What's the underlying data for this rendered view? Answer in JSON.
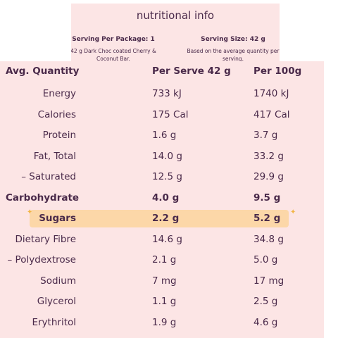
{
  "header": {
    "title": "nutritional info",
    "servings": [
      {
        "label": "Serving Per Package: 1",
        "note": "42 g Dark Choc coated Cherry & Coconut Bar."
      },
      {
        "label": "Serving Size: 42 g",
        "note": "Based on the average quantity per serving."
      }
    ]
  },
  "table": {
    "columns": [
      "Avg. Quantity",
      "Per Serve 42 g",
      "Per 100g"
    ],
    "rows": [
      [
        "Energy",
        "733 kJ",
        "1740 kJ"
      ],
      [
        "Calories",
        "175 Cal",
        "417 Cal"
      ],
      [
        "Protein",
        "1.6 g",
        "3.7 g"
      ],
      [
        "Fat, Total",
        "14.0 g",
        "33.2 g"
      ],
      [
        "– Saturated",
        "12.5 g",
        "29.9 g"
      ],
      [
        "Carbohydrate",
        "4.0 g",
        "9.5 g"
      ],
      [
        "Sugars",
        "2.2 g",
        "5.2 g"
      ],
      [
        "Dietary Fibre",
        "14.6 g",
        "34.8 g"
      ],
      [
        "– Polydextrose",
        "2.1 g",
        "5.0 g"
      ],
      [
        "Sodium",
        "7 mg",
        "17 mg"
      ],
      [
        "Glycerol",
        "1.1 g",
        "2.5 g"
      ],
      [
        "Erythritol",
        "1.9 g",
        "4.6 g"
      ]
    ]
  }
}
